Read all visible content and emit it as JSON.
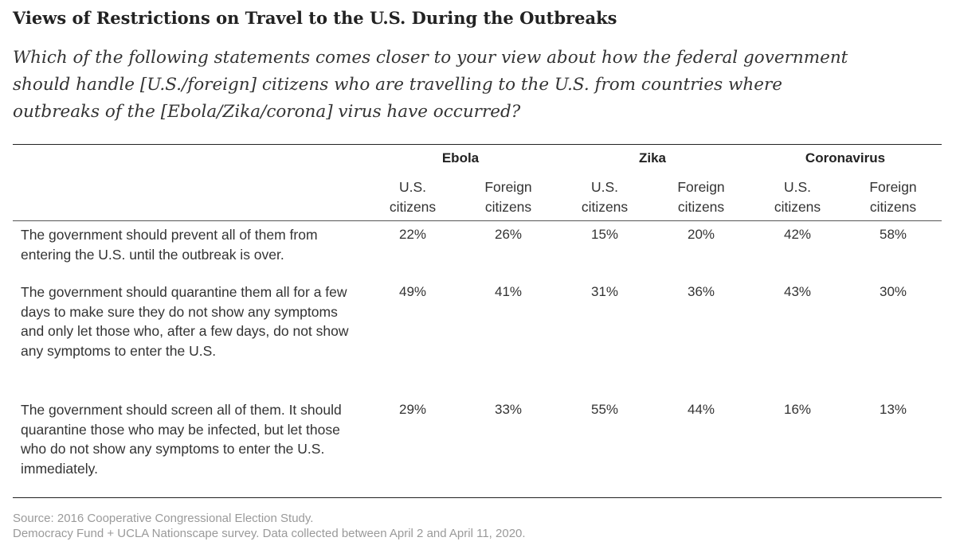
{
  "title": "Views of Restrictions on Travel to the U.S. During the Outbreaks",
  "subtitle": "Which of the following statements comes closer to your view about how the federal government should handle [U.S./foreign] citizens who are travelling to the U.S. from countries where outbreaks of the [Ebola/Zika/corona] virus have occurred?",
  "groups": [
    "Ebola",
    "Zika",
    "Coronavirus"
  ],
  "columns": [
    {
      "line1": "U.S.",
      "line2": "citizens"
    },
    {
      "line1": "Foreign",
      "line2": "citizens"
    },
    {
      "line1": "U.S.",
      "line2": "citizens"
    },
    {
      "line1": "Foreign",
      "line2": "citizens"
    },
    {
      "line1": "U.S.",
      "line2": "citizens"
    },
    {
      "line1": "Foreign",
      "line2": "citizens"
    }
  ],
  "rows": [
    {
      "statement": "The government should prevent all of them from entering the U.S. until the outbreak is over.",
      "values": [
        "22%",
        "26%",
        "15%",
        "20%",
        "42%",
        "58%"
      ]
    },
    {
      "statement": "The government should quarantine them all for a few days to make sure they do not show any symptoms and only let those who, after a few days, do not show any symptoms to enter the U.S.",
      "values": [
        "49%",
        "41%",
        "31%",
        "36%",
        "43%",
        "30%"
      ]
    },
    {
      "statement": "The government should screen all of them. It should quarantine those who may be infected, but let those who do not show any symptoms to enter the U.S. immediately.",
      "values": [
        "29%",
        "33%",
        "55%",
        "44%",
        "16%",
        "13%"
      ]
    }
  ],
  "source": {
    "line1": "Source: 2016 Cooperative Congressional Election Study.",
    "line2": "Democracy Fund + UCLA Nationscape survey. Data collected between April 2 and April 11, 2020."
  },
  "chart_data": {
    "type": "table",
    "categories": [
      "Ebola U.S. citizens",
      "Ebola Foreign citizens",
      "Zika U.S. citizens",
      "Zika Foreign citizens",
      "Coronavirus U.S. citizens",
      "Coronavirus Foreign citizens"
    ],
    "series": [
      {
        "name": "The government should prevent all of them from entering the U.S. until the outbreak is over.",
        "values": [
          22,
          26,
          15,
          20,
          42,
          58
        ]
      },
      {
        "name": "The government should quarantine them all for a few days to make sure they do not show any symptoms and only let those who, after a few days, do not show any symptoms to enter the U.S.",
        "values": [
          49,
          41,
          31,
          36,
          43,
          30
        ]
      },
      {
        "name": "The government should screen all of them. It should quarantine those who may be infected, but let those who do not show any symptoms to enter the U.S. immediately.",
        "values": [
          29,
          33,
          55,
          44,
          16,
          13
        ]
      }
    ]
  }
}
